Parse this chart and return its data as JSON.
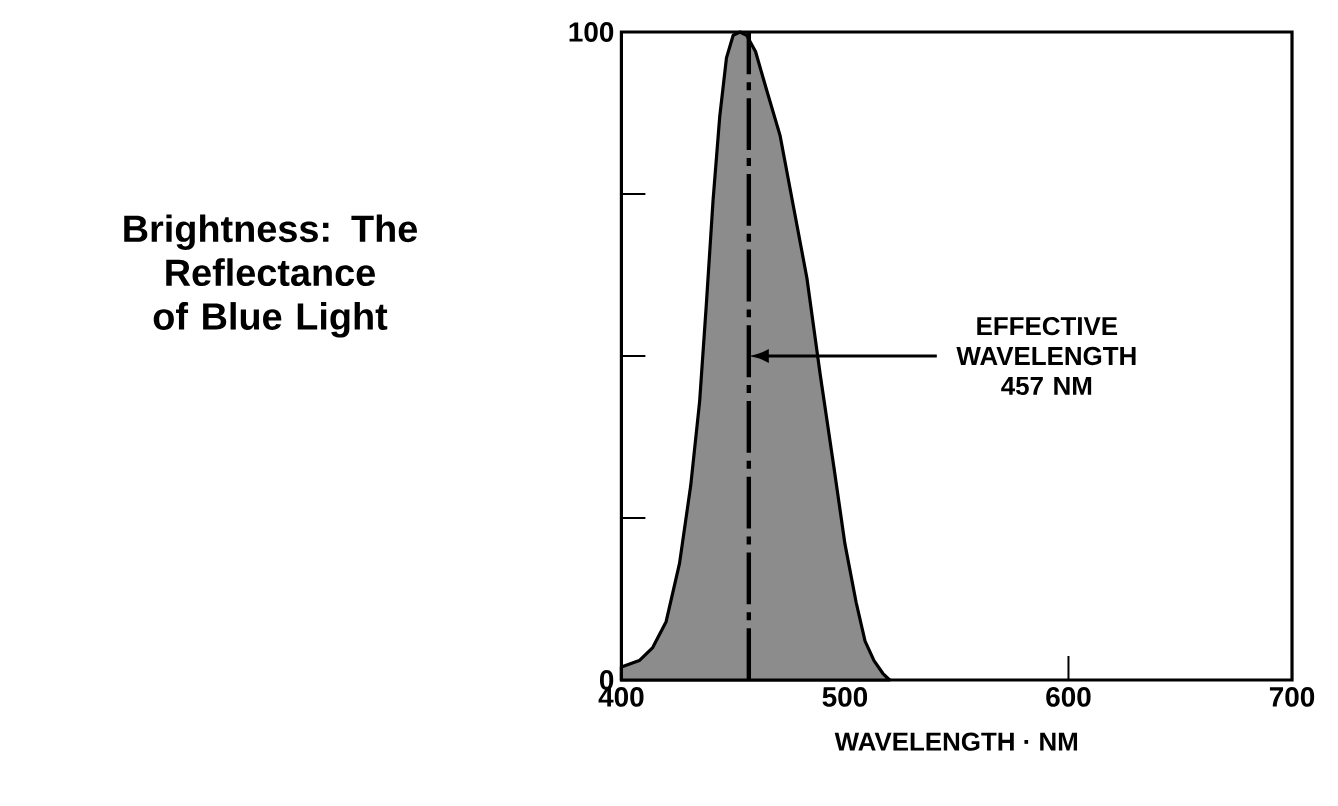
{
  "chart_data": {
    "type": "area",
    "title": "Brightness: The Reflectance of Blue Light",
    "xlabel": "WAVELENGTH · NM",
    "x": [
      400,
      408,
      414,
      420,
      426,
      431,
      435,
      438,
      441,
      444,
      447,
      450,
      453,
      456,
      460,
      465,
      471,
      477,
      483,
      489,
      495,
      500,
      505,
      509,
      513,
      517,
      520
    ],
    "values": [
      2,
      3,
      5,
      9,
      18,
      30,
      43,
      58,
      74,
      87,
      96,
      99.5,
      100,
      99.5,
      97,
      91,
      84,
      73,
      62,
      47,
      33,
      21,
      12,
      6,
      3,
      1,
      0
    ],
    "color": "#8c8c8c",
    "xlim": [
      400,
      700
    ],
    "xticks": [
      400,
      500,
      600,
      700
    ],
    "ylim": [
      0,
      100
    ],
    "yticks": [
      0,
      {
        "value": 25,
        "label": null
      },
      {
        "value": 50,
        "label": null
      },
      {
        "value": 75,
        "label": null
      },
      100
    ],
    "ref_lines": [
      {
        "axis": "x",
        "value": 457,
        "line_style": "dashdot",
        "label": "EFFECTIVE WAVELENGTH 457 NM"
      }
    ],
    "grid": false
  }
}
